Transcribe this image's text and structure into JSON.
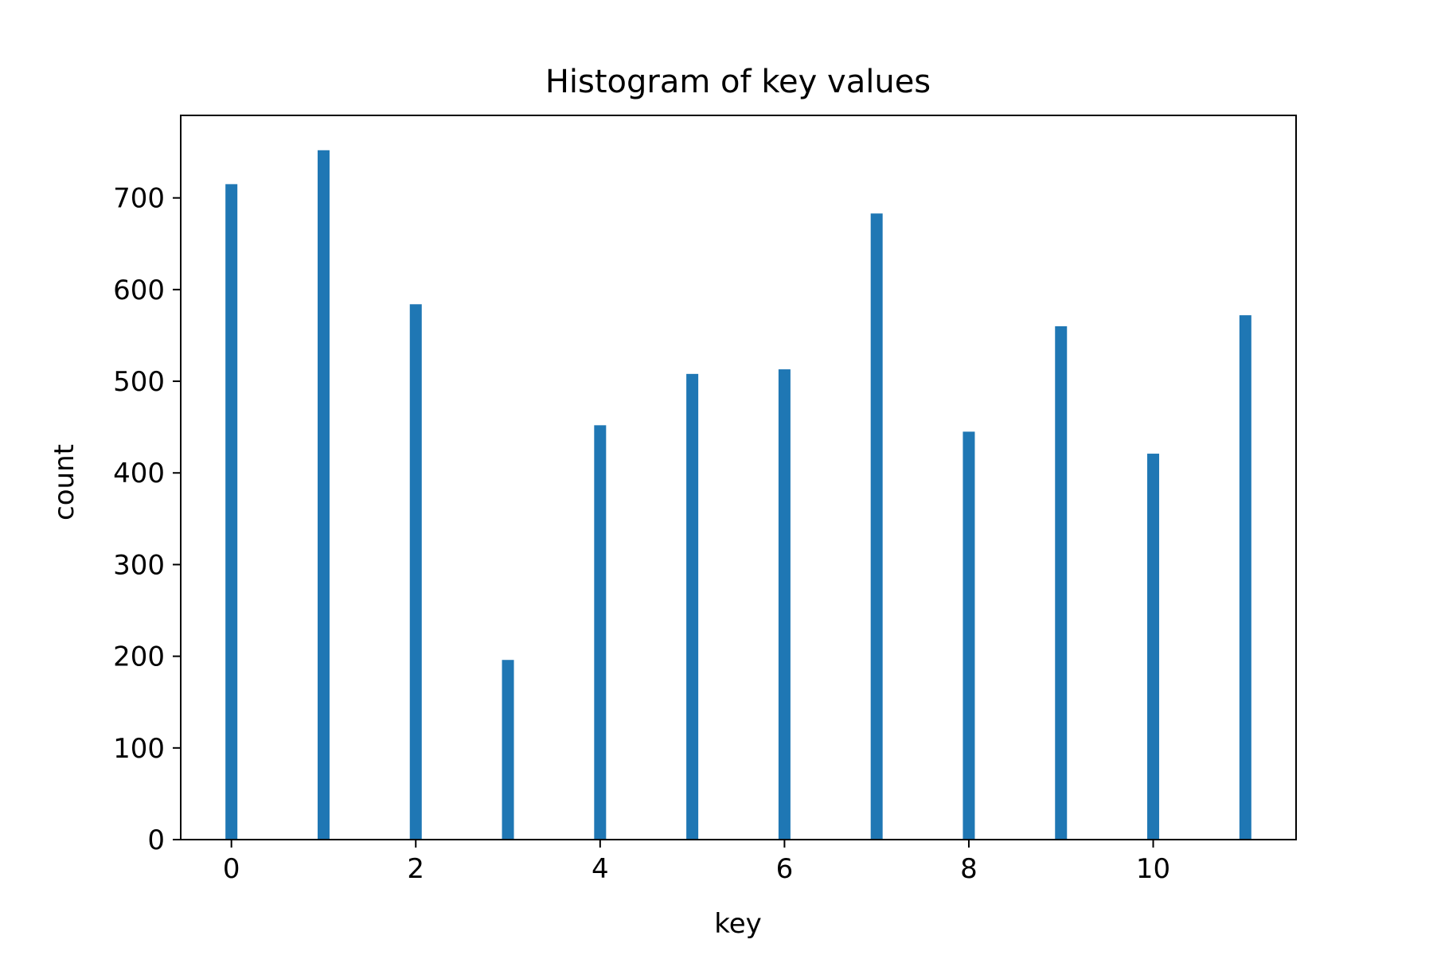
{
  "chart_data": {
    "type": "bar",
    "title": "Histogram of key values",
    "xlabel": "key",
    "ylabel": "count",
    "x": [
      0,
      1,
      2,
      3,
      4,
      5,
      6,
      7,
      8,
      9,
      10,
      11
    ],
    "values": [
      715,
      752,
      584,
      196,
      452,
      508,
      513,
      683,
      445,
      560,
      421,
      572
    ],
    "xlim": [
      -0.55,
      11.55
    ],
    "ylim": [
      0,
      790
    ],
    "xticks": [
      0,
      2,
      4,
      6,
      8,
      10
    ],
    "yticks": [
      0,
      100,
      200,
      300,
      400,
      500,
      600,
      700
    ],
    "grid": false,
    "colors": {
      "bar": "#1f77b4",
      "axis": "#000000",
      "background": "#ffffff"
    }
  }
}
